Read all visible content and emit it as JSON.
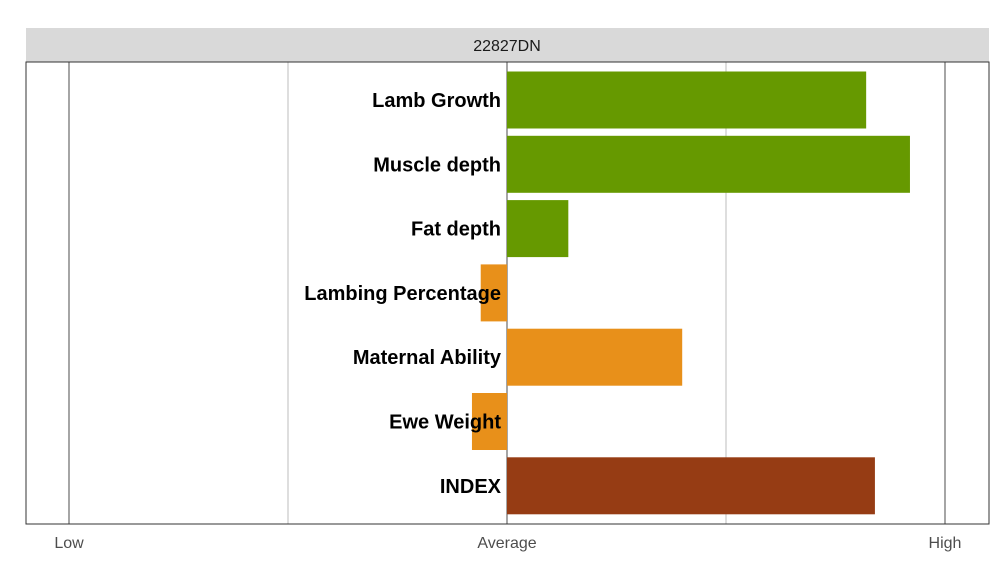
{
  "chart_data": {
    "type": "bar",
    "orientation": "horizontal",
    "title": "22827DN",
    "categories": [
      "Lamb Growth",
      "Muscle depth",
      "Fat depth",
      "Lambing Percentage",
      "Maternal Ability",
      "Ewe Weight",
      "INDEX"
    ],
    "values": [
      0.82,
      0.92,
      0.14,
      -0.06,
      0.4,
      -0.08,
      0.84
    ],
    "bar_colors": [
      "#669900",
      "#669900",
      "#669900",
      "#E8901A",
      "#E8901A",
      "#E8901A",
      "#963C14"
    ],
    "xlim": [
      -1,
      1
    ],
    "xticks": [
      {
        "value": -1,
        "label": "Low"
      },
      {
        "value": 0,
        "label": "Average"
      },
      {
        "value": 1,
        "label": "High"
      }
    ],
    "minor_gridlines": [
      -0.5,
      0.5
    ],
    "grid": true,
    "legend": "none"
  }
}
